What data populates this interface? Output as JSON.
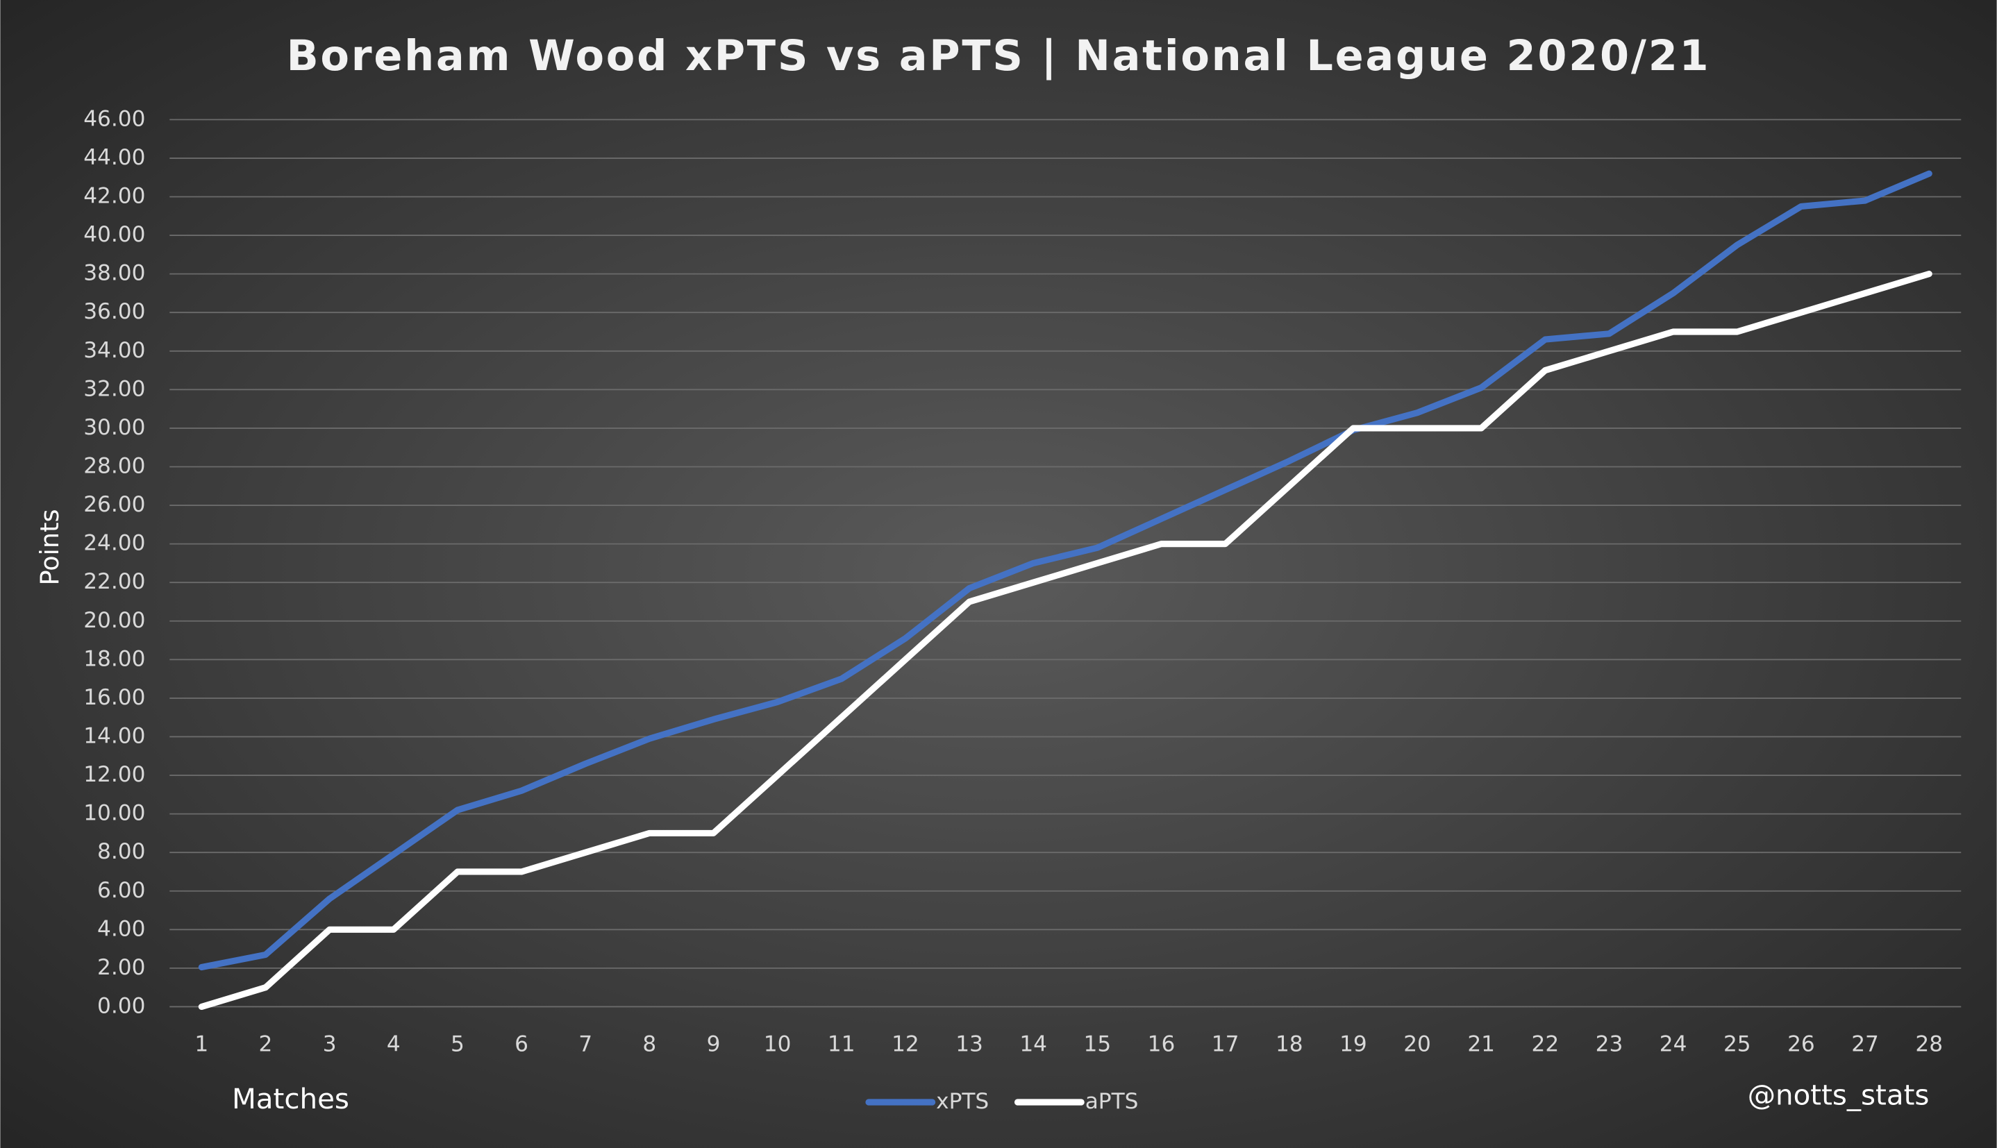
{
  "chart_data": {
    "type": "line",
    "title": "Boreham Wood xPTS vs aPTS | National League 2020/21",
    "x_label": "Matches",
    "y_label": "Points",
    "annotation": "@notts_stats",
    "categories": [
      1,
      2,
      3,
      4,
      5,
      6,
      7,
      8,
      9,
      10,
      11,
      12,
      13,
      14,
      15,
      16,
      17,
      18,
      19,
      20,
      21,
      22,
      23,
      24,
      25,
      26,
      27,
      28
    ],
    "series": [
      {
        "name": "xPTS",
        "color": "#4472c4",
        "values": [
          2.05,
          2.7,
          5.6,
          7.9,
          10.2,
          11.2,
          12.6,
          13.9,
          14.9,
          15.8,
          17.0,
          19.1,
          21.7,
          23.0,
          23.8,
          25.3,
          26.8,
          28.3,
          29.9,
          30.8,
          32.1,
          34.6,
          34.9,
          37.0,
          39.5,
          41.5,
          41.8,
          43.2
        ]
      },
      {
        "name": "aPTS",
        "color": "#ffffff",
        "values": [
          0,
          1,
          4,
          4,
          7,
          7,
          8,
          9,
          9,
          12,
          15,
          18,
          21,
          22,
          23,
          24,
          24,
          27,
          30,
          30,
          30,
          33,
          34,
          35,
          35,
          36,
          37,
          38
        ]
      }
    ],
    "ylim": [
      0,
      46
    ],
    "yticks": [
      {
        "value": 0,
        "label": "0.00"
      },
      {
        "value": 2,
        "label": "2.00"
      },
      {
        "value": 4,
        "label": "4.00"
      },
      {
        "value": 6,
        "label": "6.00"
      },
      {
        "value": 8,
        "label": "8.00"
      },
      {
        "value": 10,
        "label": "10.00"
      },
      {
        "value": 12,
        "label": "12.00"
      },
      {
        "value": 14,
        "label": "14.00"
      },
      {
        "value": 16,
        "label": "16.00"
      },
      {
        "value": 18,
        "label": "18.00"
      },
      {
        "value": 20,
        "label": "20.00"
      },
      {
        "value": 22,
        "label": "22.00"
      },
      {
        "value": 24,
        "label": "24.00"
      },
      {
        "value": 26,
        "label": "26.00"
      },
      {
        "value": 28,
        "label": "28.00"
      },
      {
        "value": 30,
        "label": "30.00"
      },
      {
        "value": 32,
        "label": "32.00"
      },
      {
        "value": 34,
        "label": "34.00"
      },
      {
        "value": 36,
        "label": "36.00"
      },
      {
        "value": 38,
        "label": "38.00"
      },
      {
        "value": 40,
        "label": "40.00"
      },
      {
        "value": 42,
        "label": "42.00"
      },
      {
        "value": 44,
        "label": "44.00"
      },
      {
        "value": 46,
        "label": "46.00"
      }
    ],
    "grid": true,
    "legend": "bottom"
  }
}
